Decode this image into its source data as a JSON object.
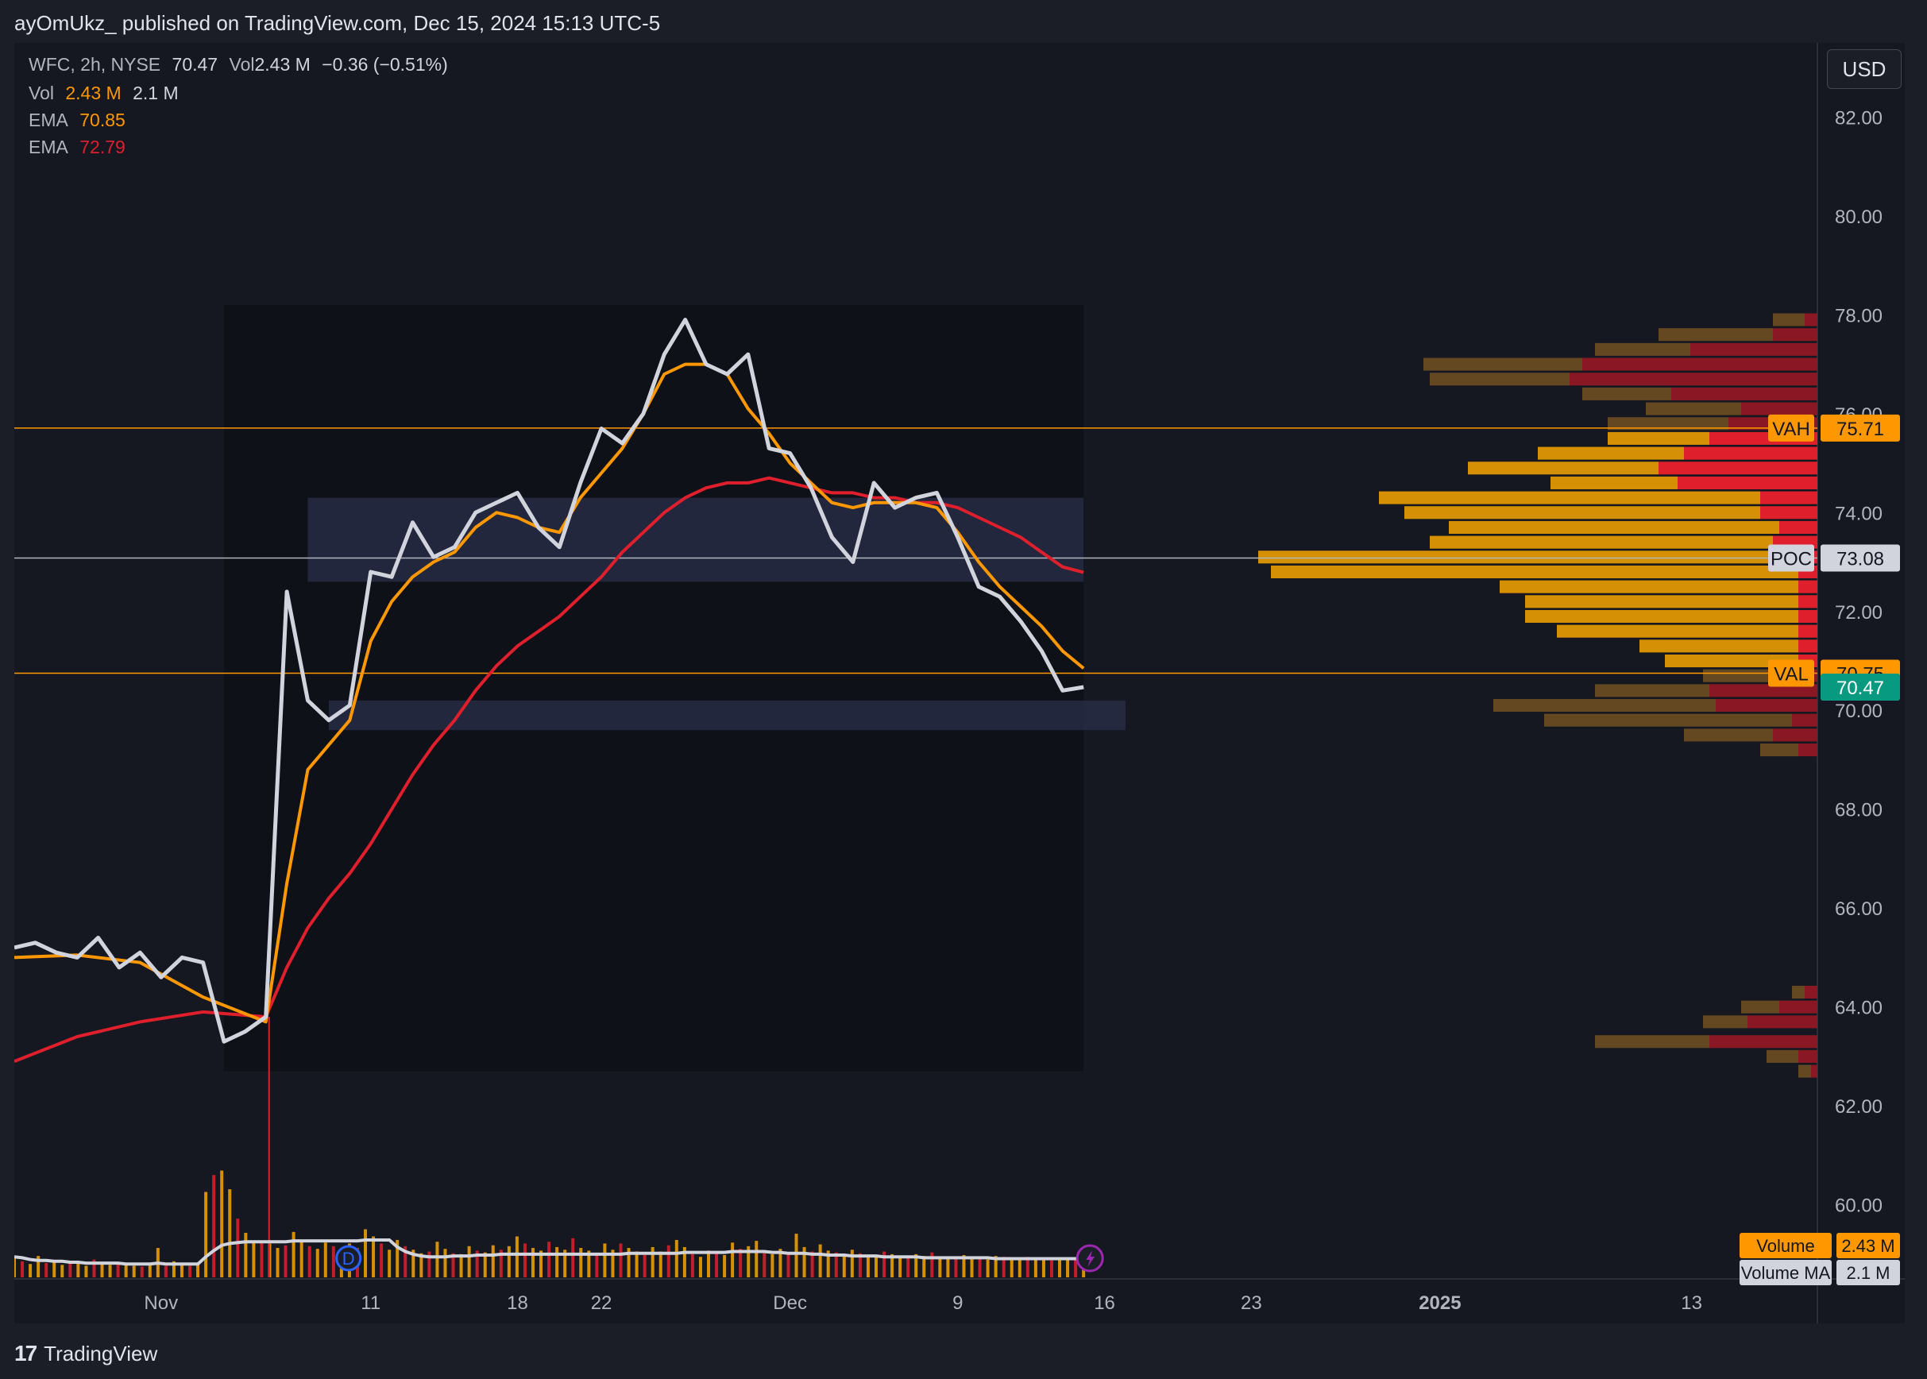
{
  "header": {
    "published": "ayOmUkz_ published on TradingView.com, Dec 15, 2024 15:13 UTC-5"
  },
  "legend": {
    "symbol": "WFC, 2h, NYSE",
    "price": "70.47",
    "vol_label": "Vol",
    "vol_value": "2.43 M",
    "change": "−0.36 (−0.51%)",
    "vol_row_label": "Vol",
    "vol_row_value": "2.43 M",
    "vol_row_ma": "2.1 M",
    "ema_fast_label": "EMA",
    "ema_fast_value": "70.85",
    "ema_slow_label": "EMA",
    "ema_slow_value": "72.79"
  },
  "currency": "USD",
  "footer": {
    "brand": "TradingView",
    "logo_mark": "17"
  },
  "colors": {
    "price": "#d1d4dc",
    "ema_fast": "#ff9800",
    "ema_slow": "#e01f2d",
    "vah_val_line": "#ff9800",
    "poc_line": "#b2b5be",
    "last_price_badge": "#089981"
  },
  "chart_data": {
    "type": "line",
    "ylim": [
      58.5,
      83.5
    ],
    "y_ticks": [
      "82.00",
      "80.00",
      "78.00",
      "76.00",
      "74.00",
      "72.00",
      "70.00",
      "68.00",
      "66.00",
      "64.00",
      "62.00",
      "60.00"
    ],
    "y_tick_values": [
      82,
      80,
      78,
      76,
      74,
      72,
      70,
      68,
      66,
      64,
      62,
      60
    ],
    "x_ticks": [
      "Nov",
      "11",
      "18",
      "22",
      "Dec",
      "9",
      "16",
      "23",
      "2025",
      "13"
    ],
    "x_tick_dates": [
      "2024-11-01",
      "2024-11-11",
      "2024-11-18",
      "2024-11-22",
      "2024-12-01",
      "2024-12-09",
      "2024-12-16",
      "2024-12-23",
      "2025-01-01",
      "2025-01-13"
    ],
    "series": [
      {
        "name": "WFC",
        "points": [
          [
            "2024-10-25",
            65.2
          ],
          [
            "2024-10-26",
            65.3
          ],
          [
            "2024-10-27",
            65.1
          ],
          [
            "2024-10-28",
            65.0
          ],
          [
            "2024-10-29",
            65.4
          ],
          [
            "2024-10-30",
            64.8
          ],
          [
            "2024-10-31",
            65.1
          ],
          [
            "2024-11-01",
            64.6
          ],
          [
            "2024-11-02",
            65.0
          ],
          [
            "2024-11-03",
            64.9
          ],
          [
            "2024-11-04",
            63.3
          ],
          [
            "2024-11-05",
            63.5
          ],
          [
            "2024-11-06",
            63.8
          ],
          [
            "2024-11-07",
            72.4
          ],
          [
            "2024-11-08",
            70.2
          ],
          [
            "2024-11-09",
            69.8
          ],
          [
            "2024-11-10",
            70.1
          ],
          [
            "2024-11-11",
            72.8
          ],
          [
            "2024-11-12",
            72.7
          ],
          [
            "2024-11-13",
            73.8
          ],
          [
            "2024-11-14",
            73.1
          ],
          [
            "2024-11-15",
            73.3
          ],
          [
            "2024-11-16",
            74.0
          ],
          [
            "2024-11-17",
            74.2
          ],
          [
            "2024-11-18",
            74.4
          ],
          [
            "2024-11-19",
            73.7
          ],
          [
            "2024-11-20",
            73.3
          ],
          [
            "2024-11-21",
            74.6
          ],
          [
            "2024-11-22",
            75.7
          ],
          [
            "2024-11-23",
            75.4
          ],
          [
            "2024-11-24",
            76.0
          ],
          [
            "2024-11-25",
            77.2
          ],
          [
            "2024-11-26",
            77.9
          ],
          [
            "2024-11-27",
            77.0
          ],
          [
            "2024-11-28",
            76.8
          ],
          [
            "2024-11-29",
            77.2
          ],
          [
            "2024-11-30",
            75.3
          ],
          [
            "2024-12-01",
            75.2
          ],
          [
            "2024-12-02",
            74.5
          ],
          [
            "2024-12-03",
            73.5
          ],
          [
            "2024-12-04",
            73.0
          ],
          [
            "2024-12-05",
            74.6
          ],
          [
            "2024-12-06",
            74.1
          ],
          [
            "2024-12-07",
            74.3
          ],
          [
            "2024-12-08",
            74.4
          ],
          [
            "2024-12-09",
            73.5
          ],
          [
            "2024-12-10",
            72.5
          ],
          [
            "2024-12-11",
            72.3
          ],
          [
            "2024-12-12",
            71.8
          ],
          [
            "2024-12-13",
            71.2
          ],
          [
            "2024-12-14",
            70.4
          ],
          [
            "2024-12-15",
            70.47
          ]
        ]
      },
      {
        "name": "EMA",
        "value_label": "70.85",
        "points": [
          [
            "2024-10-25",
            65.0
          ],
          [
            "2024-10-28",
            65.05
          ],
          [
            "2024-10-31",
            64.9
          ],
          [
            "2024-11-03",
            64.2
          ],
          [
            "2024-11-06",
            63.7
          ],
          [
            "2024-11-07",
            66.5
          ],
          [
            "2024-11-08",
            68.8
          ],
          [
            "2024-11-09",
            69.3
          ],
          [
            "2024-11-10",
            69.8
          ],
          [
            "2024-11-11",
            71.4
          ],
          [
            "2024-11-12",
            72.2
          ],
          [
            "2024-11-13",
            72.7
          ],
          [
            "2024-11-14",
            73.0
          ],
          [
            "2024-11-15",
            73.2
          ],
          [
            "2024-11-16",
            73.7
          ],
          [
            "2024-11-17",
            74.0
          ],
          [
            "2024-11-18",
            73.9
          ],
          [
            "2024-11-19",
            73.7
          ],
          [
            "2024-11-20",
            73.6
          ],
          [
            "2024-11-21",
            74.3
          ],
          [
            "2024-11-22",
            74.8
          ],
          [
            "2024-11-23",
            75.3
          ],
          [
            "2024-11-24",
            76.0
          ],
          [
            "2024-11-25",
            76.8
          ],
          [
            "2024-11-26",
            77.0
          ],
          [
            "2024-11-27",
            77.0
          ],
          [
            "2024-11-28",
            76.8
          ],
          [
            "2024-11-29",
            76.1
          ],
          [
            "2024-11-30",
            75.6
          ],
          [
            "2024-12-01",
            75.0
          ],
          [
            "2024-12-02",
            74.6
          ],
          [
            "2024-12-03",
            74.2
          ],
          [
            "2024-12-04",
            74.1
          ],
          [
            "2024-12-05",
            74.2
          ],
          [
            "2024-12-06",
            74.2
          ],
          [
            "2024-12-07",
            74.2
          ],
          [
            "2024-12-08",
            74.1
          ],
          [
            "2024-12-09",
            73.6
          ],
          [
            "2024-12-10",
            73.0
          ],
          [
            "2024-12-11",
            72.5
          ],
          [
            "2024-12-12",
            72.1
          ],
          [
            "2024-12-13",
            71.7
          ],
          [
            "2024-12-14",
            71.2
          ],
          [
            "2024-12-15",
            70.85
          ]
        ]
      },
      {
        "name": "EMA",
        "value_label": "72.79",
        "points": [
          [
            "2024-10-25",
            62.9
          ],
          [
            "2024-10-28",
            63.4
          ],
          [
            "2024-10-31",
            63.7
          ],
          [
            "2024-11-03",
            63.9
          ],
          [
            "2024-11-06",
            63.8
          ],
          [
            "2024-11-07",
            64.8
          ],
          [
            "2024-11-08",
            65.6
          ],
          [
            "2024-11-09",
            66.2
          ],
          [
            "2024-11-10",
            66.7
          ],
          [
            "2024-11-11",
            67.3
          ],
          [
            "2024-11-12",
            68.0
          ],
          [
            "2024-11-13",
            68.7
          ],
          [
            "2024-11-14",
            69.3
          ],
          [
            "2024-11-15",
            69.8
          ],
          [
            "2024-11-16",
            70.4
          ],
          [
            "2024-11-17",
            70.9
          ],
          [
            "2024-11-18",
            71.3
          ],
          [
            "2024-11-19",
            71.6
          ],
          [
            "2024-11-20",
            71.9
          ],
          [
            "2024-11-21",
            72.3
          ],
          [
            "2024-11-22",
            72.7
          ],
          [
            "2024-11-23",
            73.2
          ],
          [
            "2024-11-24",
            73.6
          ],
          [
            "2024-11-25",
            74.0
          ],
          [
            "2024-11-26",
            74.3
          ],
          [
            "2024-11-27",
            74.5
          ],
          [
            "2024-11-28",
            74.6
          ],
          [
            "2024-11-29",
            74.6
          ],
          [
            "2024-11-30",
            74.7
          ],
          [
            "2024-12-01",
            74.6
          ],
          [
            "2024-12-02",
            74.5
          ],
          [
            "2024-12-03",
            74.4
          ],
          [
            "2024-12-04",
            74.4
          ],
          [
            "2024-12-05",
            74.3
          ],
          [
            "2024-12-06",
            74.3
          ],
          [
            "2024-12-07",
            74.2
          ],
          [
            "2024-12-08",
            74.2
          ],
          [
            "2024-12-09",
            74.1
          ],
          [
            "2024-12-10",
            73.9
          ],
          [
            "2024-12-11",
            73.7
          ],
          [
            "2024-12-12",
            73.5
          ],
          [
            "2024-12-13",
            73.2
          ],
          [
            "2024-12-14",
            72.9
          ],
          [
            "2024-12-15",
            72.79
          ]
        ]
      }
    ],
    "levels": [
      {
        "label": "VAH",
        "value": 75.71,
        "value_text": "75.71"
      },
      {
        "label": "POC",
        "value": 73.08,
        "value_text": "73.08"
      },
      {
        "label": "VAL",
        "value": 70.75,
        "value_text": "70.75"
      }
    ],
    "last_price": {
      "value": 70.47,
      "value_text": "70.47"
    },
    "profile_range": {
      "start": "2024-11-04",
      "end": "2024-12-15",
      "low": 62.7,
      "high": 78.2
    },
    "zones": [
      {
        "start": "2024-11-08",
        "end": "2024-12-15",
        "low": 72.6,
        "high": 74.3
      },
      {
        "start": "2024-11-09",
        "end": "2024-12-17",
        "low": 69.6,
        "high": 70.2
      }
    ],
    "volume_profile": [
      {
        "price": 77.9,
        "up": 0.5,
        "down": 0.2
      },
      {
        "price": 77.6,
        "up": 1.8,
        "down": 0.7
      },
      {
        "price": 77.3,
        "up": 1.5,
        "down": 2.0
      },
      {
        "price": 77.0,
        "up": 2.5,
        "down": 3.7
      },
      {
        "price": 76.7,
        "up": 2.2,
        "down": 3.9
      },
      {
        "price": 76.4,
        "up": 1.4,
        "down": 2.3
      },
      {
        "price": 76.1,
        "up": 1.5,
        "down": 1.2
      },
      {
        "price": 75.8,
        "up": 1.9,
        "down": 1.4
      },
      {
        "price": 75.5,
        "up": 1.6,
        "down": 1.7
      },
      {
        "price": 75.2,
        "up": 2.3,
        "down": 2.1
      },
      {
        "price": 74.9,
        "up": 3.0,
        "down": 2.5
      },
      {
        "price": 74.6,
        "up": 2.0,
        "down": 2.2
      },
      {
        "price": 74.3,
        "up": 6.0,
        "down": 0.9
      },
      {
        "price": 74.0,
        "up": 5.6,
        "down": 0.9
      },
      {
        "price": 73.7,
        "up": 5.2,
        "down": 0.6
      },
      {
        "price": 73.4,
        "up": 5.4,
        "down": 0.7
      },
      {
        "price": 73.1,
        "up": 8.5,
        "down": 0.3
      },
      {
        "price": 72.8,
        "up": 8.3,
        "down": 0.3
      },
      {
        "price": 72.5,
        "up": 4.7,
        "down": 0.3
      },
      {
        "price": 72.2,
        "up": 4.3,
        "down": 0.3
      },
      {
        "price": 71.9,
        "up": 4.3,
        "down": 0.3
      },
      {
        "price": 71.6,
        "up": 3.8,
        "down": 0.3
      },
      {
        "price": 71.3,
        "up": 2.5,
        "down": 0.3
      },
      {
        "price": 71.0,
        "up": 2.1,
        "down": 0.3
      },
      {
        "price": 70.7,
        "up": 1.5,
        "down": 0.3
      },
      {
        "price": 70.4,
        "up": 1.8,
        "down": 1.7
      },
      {
        "price": 70.1,
        "up": 3.5,
        "down": 1.6
      },
      {
        "price": 69.8,
        "up": 3.9,
        "down": 0.4
      },
      {
        "price": 69.5,
        "up": 1.4,
        "down": 0.7
      },
      {
        "price": 69.2,
        "up": 0.6,
        "down": 0.3
      },
      {
        "price": 64.3,
        "up": 0.2,
        "down": 0.2
      },
      {
        "price": 64.0,
        "up": 0.6,
        "down": 0.6
      },
      {
        "price": 63.7,
        "up": 0.7,
        "down": 1.1
      },
      {
        "price": 63.3,
        "up": 1.8,
        "down": 1.7
      },
      {
        "price": 63.0,
        "up": 0.5,
        "down": 0.3
      },
      {
        "price": 62.7,
        "up": 0.2,
        "down": 0.1
      }
    ],
    "volume": {
      "label": "Volume",
      "value_text": "2.43 M",
      "ma_label": "Volume MA",
      "ma_text": "2.1 M",
      "bars_millions": [
        2.2,
        1.8,
        1.5,
        2.4,
        1.6,
        1.9,
        1.4,
        1.8,
        1.6,
        1.3,
        2.0,
        1.6,
        1.4,
        1.7,
        1.5,
        1.3,
        1.2,
        1.4,
        3.3,
        1.3,
        1.8,
        1.5,
        1.3,
        1.5,
        9.6,
        11.5,
        12.0,
        9.9,
        6.6,
        5.0,
        3.9,
        4.0,
        3.8,
        3.3,
        3.6,
        5.1,
        4.0,
        3.5,
        3.2,
        3.9,
        3.5,
        3.0,
        3.8,
        3.3,
        5.4,
        4.6,
        3.8,
        3.1,
        4.2,
        3.5,
        3.1,
        2.7,
        2.9,
        4.0,
        3.2,
        2.7,
        2.6,
        3.5,
        3.0,
        2.8,
        3.6,
        3.1,
        3.5,
        4.6,
        3.8,
        3.3,
        3.0,
        4.0,
        3.4,
        3.1,
        4.4,
        3.3,
        3.0,
        2.7,
        3.8,
        3.1,
        3.8,
        3.3,
        2.9,
        2.5,
        3.4,
        2.9,
        3.6,
        4.2,
        3.4,
        2.6,
        2.3,
        3.0,
        2.7,
        2.5,
        3.9,
        3.2,
        3.5,
        4.1,
        2.9,
        2.6,
        3.2,
        2.8,
        4.9,
        3.4,
        2.9,
        3.7,
        3.0,
        2.8,
        2.5,
        3.1,
        2.7,
        2.5,
        2.3,
        2.9,
        2.6,
        2.4,
        2.2,
        2.6,
        2.4,
        2.8,
        2.3,
        2.2,
        2.1,
        2.5,
        2.3,
        2.2,
        2.0,
        2.4,
        2.3,
        2.1,
        2.0,
        2.3,
        2.2,
        2.0,
        1.9,
        2.2,
        2.1,
        2.0,
        2.43
      ],
      "ma_millions": [
        2.3,
        2.2,
        2.0,
        1.9,
        1.9,
        1.8,
        1.8,
        1.7,
        1.7,
        1.6,
        1.6,
        1.6,
        1.6,
        1.6,
        1.5,
        1.5,
        1.5,
        1.5,
        1.6,
        1.5,
        1.5,
        1.5,
        1.5,
        1.5,
        2.3,
        3.0,
        3.6,
        3.8,
        3.9,
        4.0,
        4.0,
        4.0,
        4.0,
        4.0,
        4.0,
        4.1,
        4.1,
        4.1,
        4.1,
        4.1,
        4.1,
        4.1,
        4.1,
        4.1,
        4.2,
        4.2,
        4.2,
        4.2,
        3.4,
        2.9,
        2.6,
        2.4,
        2.3,
        2.3,
        2.3,
        2.4,
        2.4,
        2.4,
        2.5,
        2.5,
        2.5,
        2.6,
        2.6,
        2.6,
        2.6,
        2.6,
        2.6,
        2.6,
        2.6,
        2.6,
        2.6,
        2.6,
        2.6,
        2.6,
        2.6,
        2.6,
        2.6,
        2.7,
        2.7,
        2.7,
        2.7,
        2.7,
        2.7,
        2.7,
        2.8,
        2.8,
        2.8,
        2.8,
        2.8,
        2.8,
        2.9,
        2.9,
        2.9,
        2.9,
        2.9,
        2.8,
        2.8,
        2.7,
        2.7,
        2.7,
        2.6,
        2.6,
        2.5,
        2.5,
        2.5,
        2.4,
        2.4,
        2.4,
        2.4,
        2.3,
        2.3,
        2.3,
        2.3,
        2.3,
        2.2,
        2.2,
        2.2,
        2.2,
        2.2,
        2.2,
        2.2,
        2.2,
        2.2,
        2.1,
        2.1,
        2.1,
        2.1,
        2.1,
        2.1,
        2.1,
        2.1,
        2.1,
        2.1,
        2.1,
        2.1,
        2.1,
        2.1
      ]
    },
    "event_markers": [
      {
        "date": "2024-11-11",
        "label": "D"
      }
    ]
  }
}
